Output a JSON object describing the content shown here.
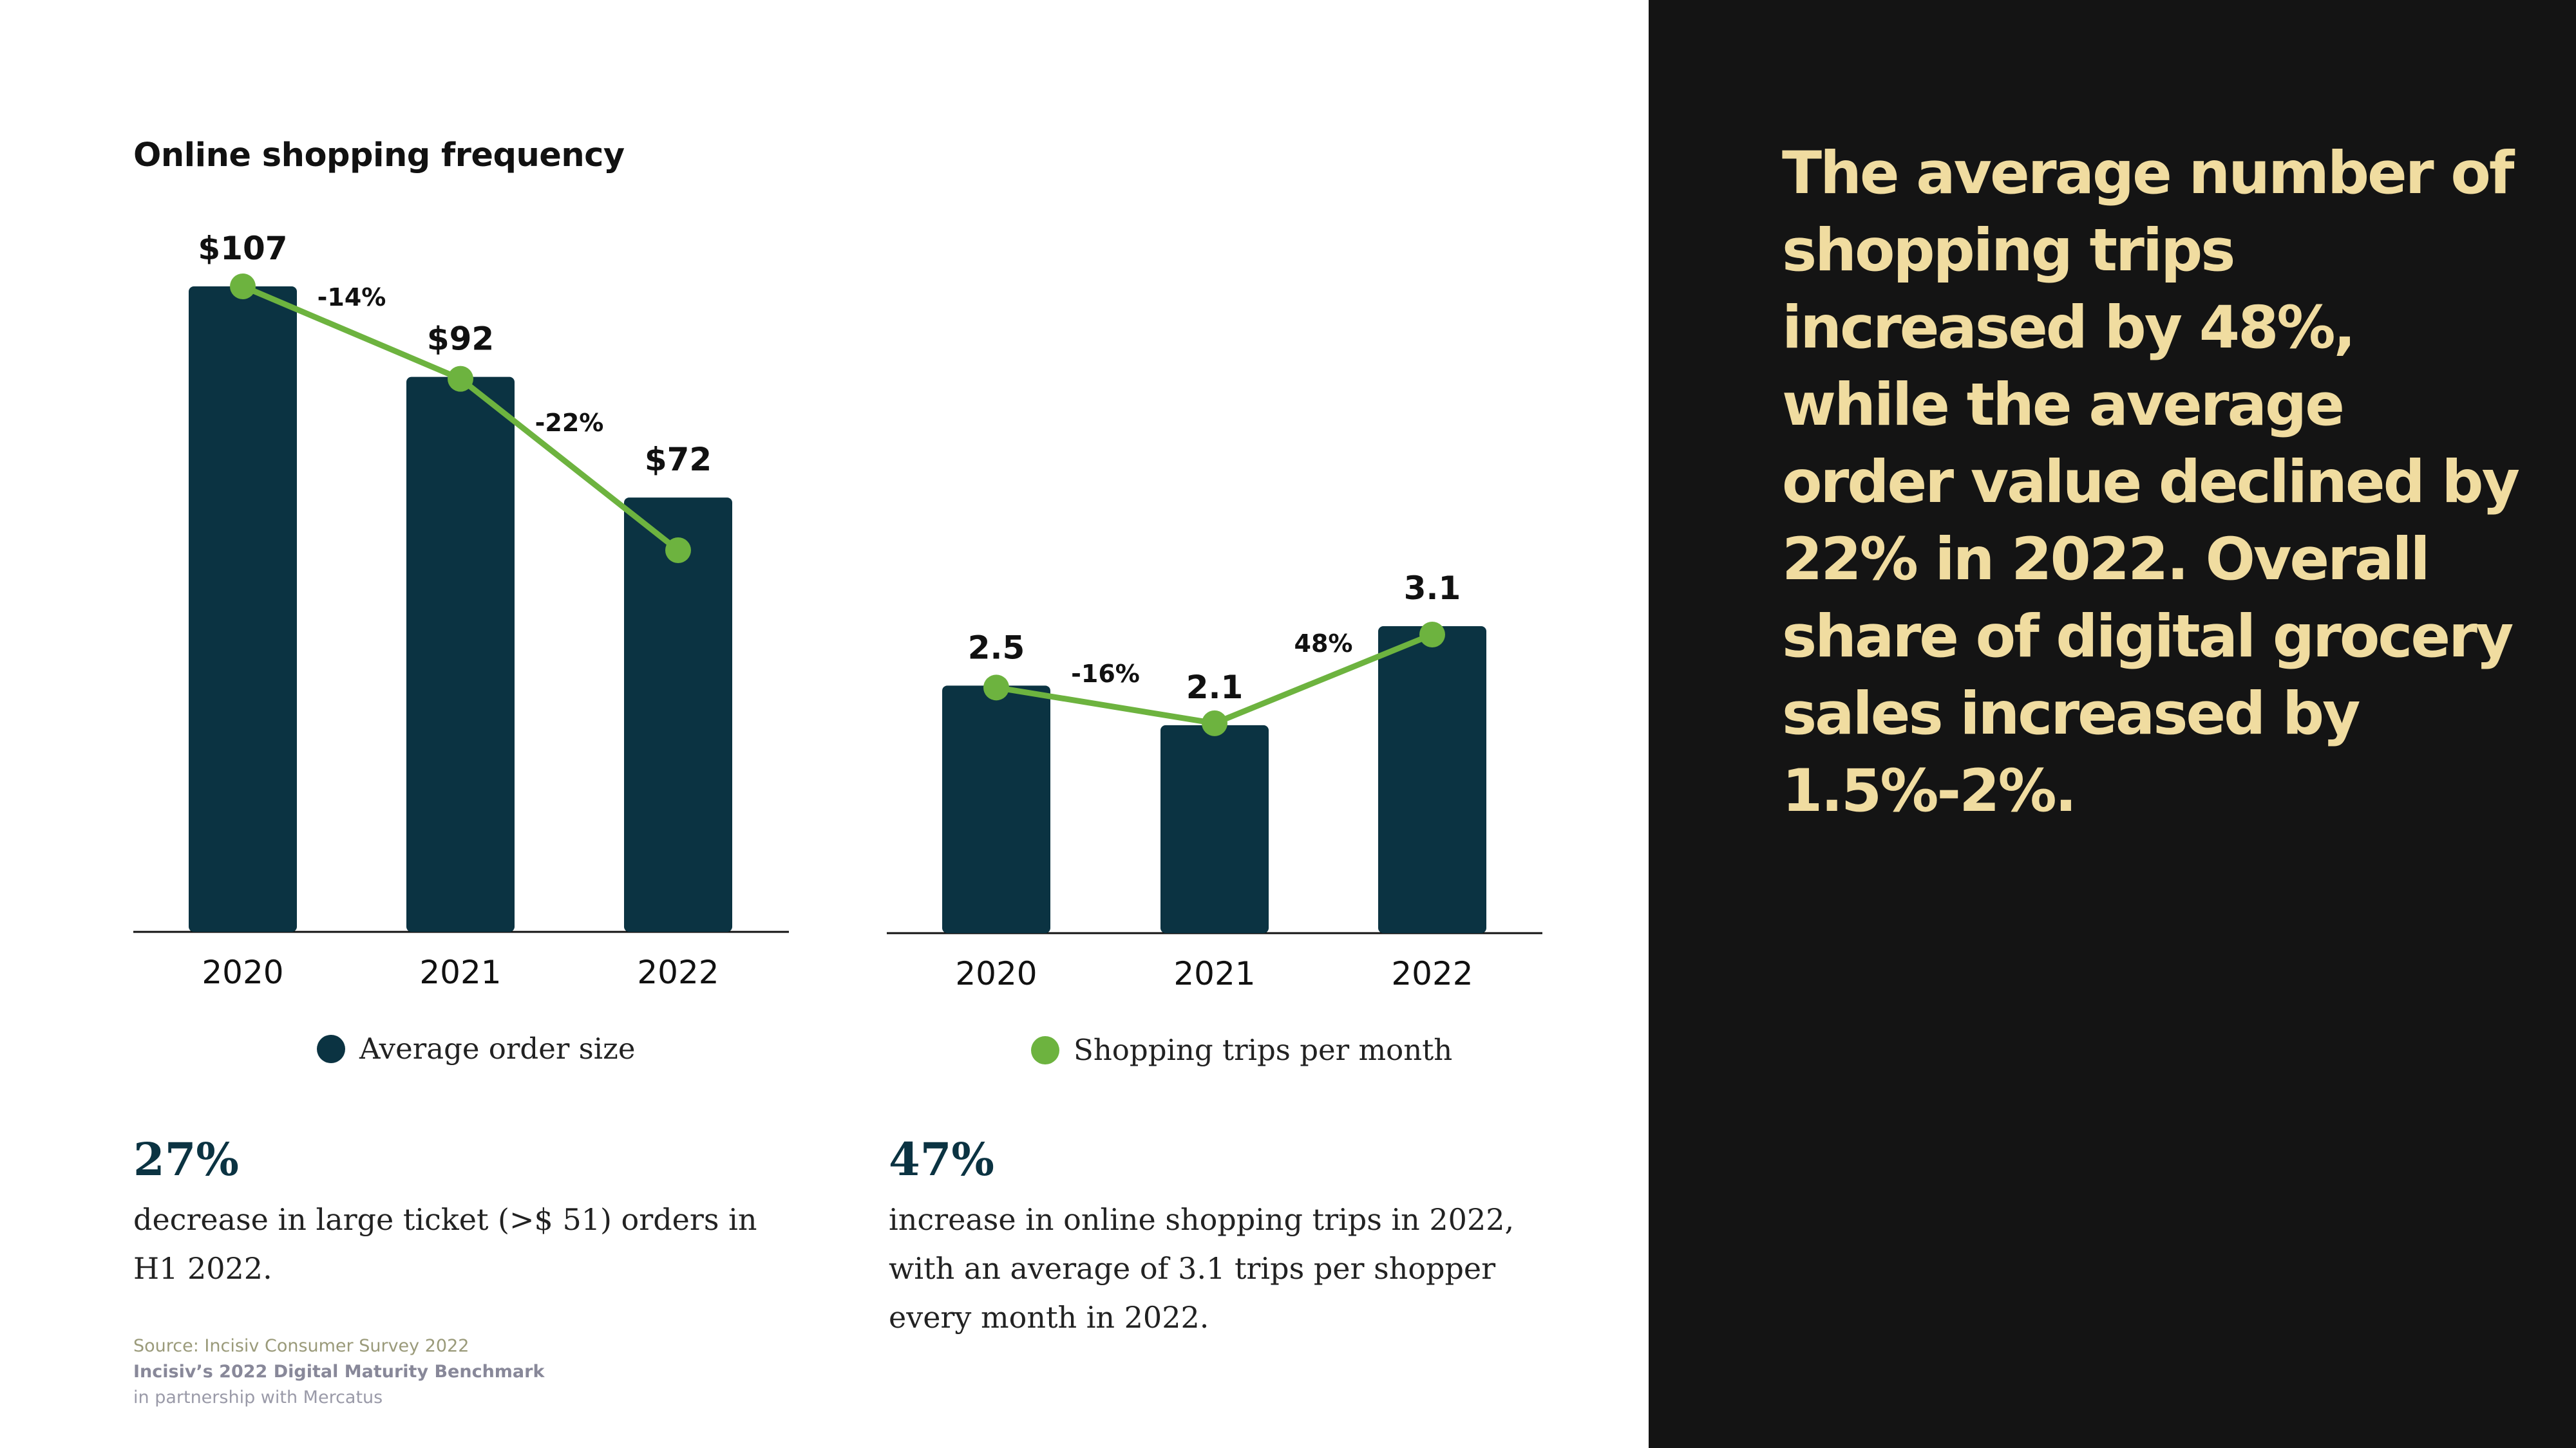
{
  "section_title": "Online shopping frequency",
  "headline": "The average number of shopping trips increased by 48%, while the average order value declined by 22% in 2022. Overall share of digital grocery sales increased by 1.5%-2%.",
  "colors": {
    "bar": "#0b3342",
    "line": "#6db33f",
    "panel_dark": "#141414",
    "headline_text": "#f0dca0"
  },
  "chart_data": [
    {
      "type": "bar",
      "categories": [
        "2020",
        "2021",
        "2022"
      ],
      "values": [
        107,
        92,
        72
      ],
      "value_labels": [
        "$107",
        "$92",
        "$72"
      ],
      "changes": [
        "-14%",
        "-22%"
      ],
      "legend": "Average order size",
      "legend_color": "#0b3342",
      "line_overlay": true,
      "ylim": [
        0,
        107
      ]
    },
    {
      "type": "bar",
      "categories": [
        "2020",
        "2021",
        "2022"
      ],
      "values": [
        2.5,
        2.1,
        3.1
      ],
      "value_labels": [
        "2.5",
        "2.1",
        "3.1"
      ],
      "changes": [
        "-16%",
        "48%"
      ],
      "legend": "Shopping trips per month",
      "legend_color": "#6db33f",
      "line_overlay": true,
      "ylim": [
        0,
        3.1
      ]
    }
  ],
  "stats": [
    {
      "value": "27%",
      "text": "decrease in large ticket (>$ 51) orders in H1 2022."
    },
    {
      "value": "47%",
      "text": "increase in online shopping trips in 2022, with an average of 3.1 trips per shopper every month in 2022."
    }
  ],
  "source": {
    "line1": "Source: Incisiv Consumer Survey 2022",
    "line2": "Incisiv’s 2022 Digital Maturity Benchmark",
    "line3": "in partnership with Mercatus"
  }
}
